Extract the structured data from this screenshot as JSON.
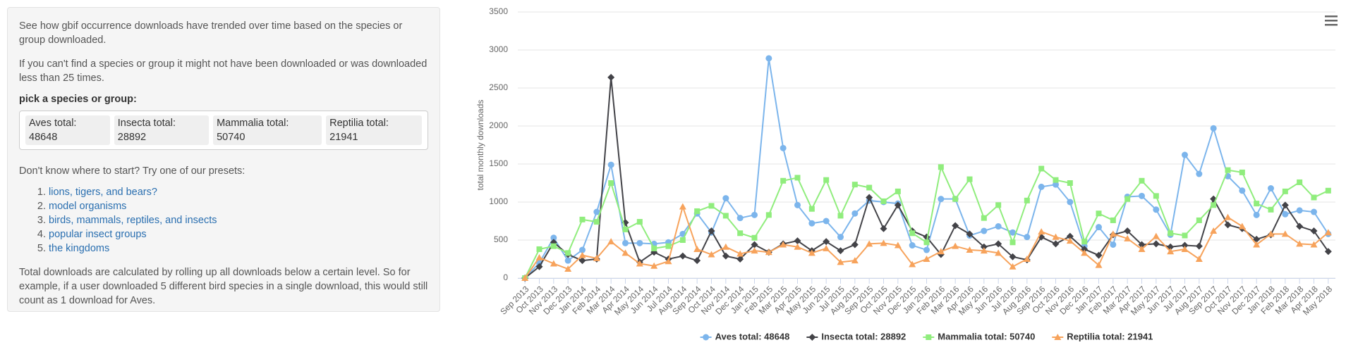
{
  "sidebar": {
    "intro": "See how gbif occurrence downloads have trended over time based on the species or group downloaded.",
    "note": "If you can't find a species or group it might not have been downloaded or was downloaded less than 25 times.",
    "picker_label": "pick a species or group:",
    "selected": [
      "Aves total: 48648",
      "Insecta total: 28892",
      "Mammalia total: 50740",
      "Reptilia total: 21941"
    ],
    "presets_intro": "Don't know where to start? Try one of our presets:",
    "presets": [
      "lions, tigers, and bears?",
      "model organisms",
      "birds, mammals, reptiles, and insects",
      "popular insect groups",
      "the kingdoms"
    ],
    "footer": "Total downloads are calculated by rolling up all downloads below a certain level. So for example, if a user downloaded 5 different bird species in a single download, this would still count as 1 download for Aves."
  },
  "chart_data": {
    "type": "line",
    "y_label": "total monthly downloads",
    "categories": [
      "Sep 2013",
      "Oct 2013",
      "Nov 2013",
      "Dec 2013",
      "Jan 2014",
      "Feb 2014",
      "Mar 2014",
      "Apr 2014",
      "May 2014",
      "Jun 2014",
      "Jul 2014",
      "Aug 2014",
      "Sep 2014",
      "Oct 2014",
      "Nov 2014",
      "Dec 2014",
      "Jan 2015",
      "Feb 2015",
      "Mar 2015",
      "Apr 2015",
      "May 2015",
      "Jun 2015",
      "Jul 2015",
      "Aug 2015",
      "Sep 2015",
      "Oct 2015",
      "Nov 2015",
      "Dec 2015",
      "Jan 2016",
      "Feb 2016",
      "Mar 2016",
      "Apr 2016",
      "May 2016",
      "Jun 2016",
      "Jul 2016",
      "Aug 2016",
      "Sep 2016",
      "Oct 2016",
      "Nov 2016",
      "Dec 2016",
      "Jan 2017",
      "Feb 2017",
      "Mar 2017",
      "Apr 2017",
      "May 2017",
      "Jun 2017",
      "Jul 2017",
      "Aug 2017",
      "Sep 2017",
      "Oct 2017",
      "Nov 2017",
      "Dec 2017",
      "Jan 2018",
      "Feb 2018",
      "Mar 2018",
      "Apr 2018",
      "May 2018"
    ],
    "series": [
      {
        "name": "Aves total: 48648",
        "color": "#7cb5ec",
        "marker": "circle",
        "values": [
          0,
          200,
          530,
          230,
          370,
          870,
          1490,
          460,
          460,
          450,
          470,
          580,
          850,
          600,
          1050,
          790,
          830,
          2890,
          1710,
          960,
          720,
          750,
          540,
          850,
          1020,
          1000,
          980,
          430,
          370,
          1040,
          1040,
          560,
          620,
          680,
          600,
          540,
          1200,
          1230,
          1000,
          420,
          670,
          440,
          1070,
          1080,
          900,
          570,
          1620,
          1370,
          1970,
          1340,
          1150,
          830,
          1180,
          840,
          890,
          870,
          580
        ]
      },
      {
        "name": "Insecta total: 28892",
        "color": "#434348",
        "marker": "diamond",
        "values": [
          0,
          150,
          470,
          310,
          230,
          250,
          2640,
          730,
          210,
          340,
          250,
          290,
          230,
          620,
          290,
          250,
          440,
          340,
          450,
          490,
          360,
          480,
          360,
          440,
          1060,
          650,
          960,
          620,
          540,
          310,
          690,
          580,
          410,
          450,
          280,
          240,
          540,
          450,
          550,
          380,
          300,
          570,
          620,
          440,
          450,
          410,
          430,
          420,
          1040,
          700,
          650,
          510,
          570,
          960,
          680,
          620,
          350
        ]
      },
      {
        "name": "Mammalia total: 50740",
        "color": "#90ed7d",
        "marker": "square",
        "values": [
          0,
          380,
          420,
          330,
          770,
          740,
          1250,
          640,
          740,
          390,
          420,
          500,
          880,
          950,
          820,
          590,
          530,
          830,
          1280,
          1320,
          910,
          1290,
          820,
          1230,
          1190,
          1010,
          1140,
          590,
          470,
          1460,
          1040,
          1300,
          790,
          960,
          470,
          1020,
          1440,
          1290,
          1250,
          480,
          850,
          760,
          1040,
          1280,
          1080,
          590,
          560,
          760,
          960,
          1420,
          1390,
          980,
          900,
          1140,
          1260,
          1060,
          1150
        ]
      },
      {
        "name": "Reptilia total: 21941",
        "color": "#f7a35c",
        "marker": "triangle",
        "values": [
          0,
          270,
          190,
          120,
          300,
          260,
          480,
          330,
          190,
          160,
          220,
          940,
          380,
          310,
          410,
          320,
          360,
          340,
          440,
          410,
          330,
          390,
          210,
          230,
          450,
          460,
          430,
          180,
          250,
          350,
          420,
          370,
          360,
          330,
          150,
          250,
          610,
          540,
          490,
          330,
          170,
          580,
          520,
          380,
          550,
          350,
          380,
          250,
          620,
          800,
          680,
          440,
          580,
          580,
          450,
          440,
          600
        ]
      }
    ],
    "ylim": [
      0,
      3500
    ],
    "yticks": [
      0,
      500,
      1000,
      1500,
      2000,
      2500,
      3000,
      3500
    ],
    "grid": true,
    "legend": "bottom"
  }
}
